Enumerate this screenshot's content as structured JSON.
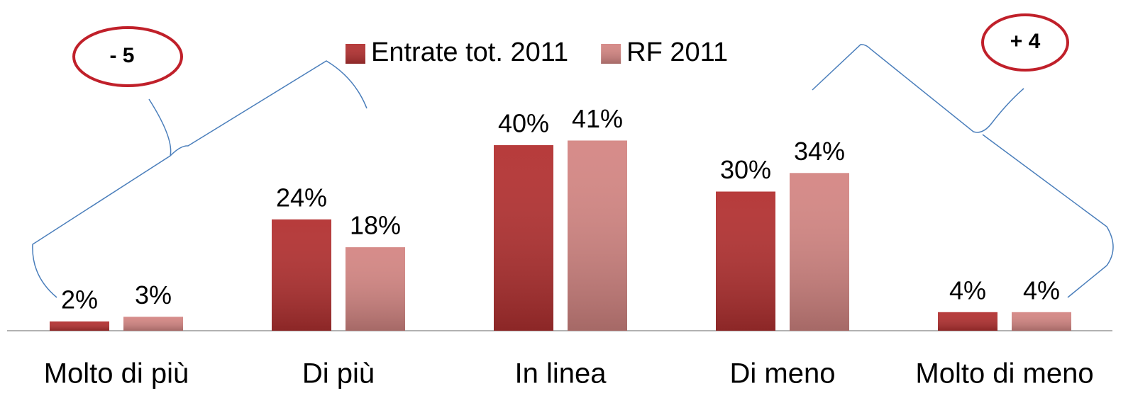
{
  "chart_data": {
    "type": "bar",
    "categories": [
      "Molto di più",
      "Di più",
      "In linea",
      "Di meno",
      "Molto di meno"
    ],
    "series": [
      {
        "name": "Entrate tot. 2011",
        "color": "#b33131",
        "values": [
          2,
          24,
          40,
          30,
          4
        ],
        "value_labels": [
          "2%",
          "24%",
          "40%",
          "30%",
          "4%"
        ]
      },
      {
        "name": "RF 2011",
        "color": "#d48683",
        "values": [
          3,
          18,
          41,
          34,
          4
        ],
        "value_labels": [
          "3%",
          "18%",
          "41%",
          "34%",
          "4%"
        ]
      }
    ],
    "ylim": [
      0,
      50
    ],
    "legend": "top",
    "annotations": [
      "- 5",
      "+ 4"
    ]
  }
}
